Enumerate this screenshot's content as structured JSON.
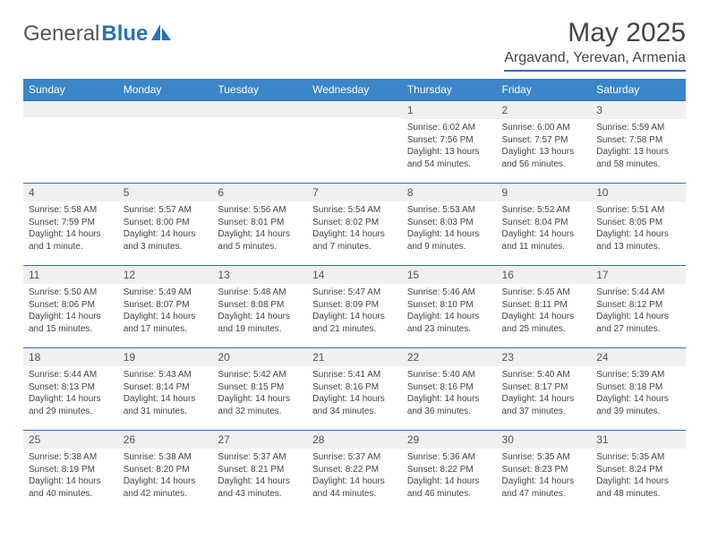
{
  "logo": {
    "text1": "General",
    "text2": "Blue"
  },
  "title": "May 2025",
  "location": "Argavand, Yerevan, Armenia",
  "colors": {
    "header_bg": "#3a86c8",
    "header_text": "#ffffff",
    "rule": "#2a72b5",
    "daynum_bg": "#eef0f2",
    "body_text": "#444444"
  },
  "weekdays": [
    "Sunday",
    "Monday",
    "Tuesday",
    "Wednesday",
    "Thursday",
    "Friday",
    "Saturday"
  ],
  "weeks": [
    [
      null,
      null,
      null,
      null,
      {
        "n": "1",
        "sr": "Sunrise: 6:02 AM",
        "ss": "Sunset: 7:56 PM",
        "dl": "Daylight: 13 hours and 54 minutes."
      },
      {
        "n": "2",
        "sr": "Sunrise: 6:00 AM",
        "ss": "Sunset: 7:57 PM",
        "dl": "Daylight: 13 hours and 56 minutes."
      },
      {
        "n": "3",
        "sr": "Sunrise: 5:59 AM",
        "ss": "Sunset: 7:58 PM",
        "dl": "Daylight: 13 hours and 58 minutes."
      }
    ],
    [
      {
        "n": "4",
        "sr": "Sunrise: 5:58 AM",
        "ss": "Sunset: 7:59 PM",
        "dl": "Daylight: 14 hours and 1 minute."
      },
      {
        "n": "5",
        "sr": "Sunrise: 5:57 AM",
        "ss": "Sunset: 8:00 PM",
        "dl": "Daylight: 14 hours and 3 minutes."
      },
      {
        "n": "6",
        "sr": "Sunrise: 5:56 AM",
        "ss": "Sunset: 8:01 PM",
        "dl": "Daylight: 14 hours and 5 minutes."
      },
      {
        "n": "7",
        "sr": "Sunrise: 5:54 AM",
        "ss": "Sunset: 8:02 PM",
        "dl": "Daylight: 14 hours and 7 minutes."
      },
      {
        "n": "8",
        "sr": "Sunrise: 5:53 AM",
        "ss": "Sunset: 8:03 PM",
        "dl": "Daylight: 14 hours and 9 minutes."
      },
      {
        "n": "9",
        "sr": "Sunrise: 5:52 AM",
        "ss": "Sunset: 8:04 PM",
        "dl": "Daylight: 14 hours and 11 minutes."
      },
      {
        "n": "10",
        "sr": "Sunrise: 5:51 AM",
        "ss": "Sunset: 8:05 PM",
        "dl": "Daylight: 14 hours and 13 minutes."
      }
    ],
    [
      {
        "n": "11",
        "sr": "Sunrise: 5:50 AM",
        "ss": "Sunset: 8:06 PM",
        "dl": "Daylight: 14 hours and 15 minutes."
      },
      {
        "n": "12",
        "sr": "Sunrise: 5:49 AM",
        "ss": "Sunset: 8:07 PM",
        "dl": "Daylight: 14 hours and 17 minutes."
      },
      {
        "n": "13",
        "sr": "Sunrise: 5:48 AM",
        "ss": "Sunset: 8:08 PM",
        "dl": "Daylight: 14 hours and 19 minutes."
      },
      {
        "n": "14",
        "sr": "Sunrise: 5:47 AM",
        "ss": "Sunset: 8:09 PM",
        "dl": "Daylight: 14 hours and 21 minutes."
      },
      {
        "n": "15",
        "sr": "Sunrise: 5:46 AM",
        "ss": "Sunset: 8:10 PM",
        "dl": "Daylight: 14 hours and 23 minutes."
      },
      {
        "n": "16",
        "sr": "Sunrise: 5:45 AM",
        "ss": "Sunset: 8:11 PM",
        "dl": "Daylight: 14 hours and 25 minutes."
      },
      {
        "n": "17",
        "sr": "Sunrise: 5:44 AM",
        "ss": "Sunset: 8:12 PM",
        "dl": "Daylight: 14 hours and 27 minutes."
      }
    ],
    [
      {
        "n": "18",
        "sr": "Sunrise: 5:44 AM",
        "ss": "Sunset: 8:13 PM",
        "dl": "Daylight: 14 hours and 29 minutes."
      },
      {
        "n": "19",
        "sr": "Sunrise: 5:43 AM",
        "ss": "Sunset: 8:14 PM",
        "dl": "Daylight: 14 hours and 31 minutes."
      },
      {
        "n": "20",
        "sr": "Sunrise: 5:42 AM",
        "ss": "Sunset: 8:15 PM",
        "dl": "Daylight: 14 hours and 32 minutes."
      },
      {
        "n": "21",
        "sr": "Sunrise: 5:41 AM",
        "ss": "Sunset: 8:16 PM",
        "dl": "Daylight: 14 hours and 34 minutes."
      },
      {
        "n": "22",
        "sr": "Sunrise: 5:40 AM",
        "ss": "Sunset: 8:16 PM",
        "dl": "Daylight: 14 hours and 36 minutes."
      },
      {
        "n": "23",
        "sr": "Sunrise: 5:40 AM",
        "ss": "Sunset: 8:17 PM",
        "dl": "Daylight: 14 hours and 37 minutes."
      },
      {
        "n": "24",
        "sr": "Sunrise: 5:39 AM",
        "ss": "Sunset: 8:18 PM",
        "dl": "Daylight: 14 hours and 39 minutes."
      }
    ],
    [
      {
        "n": "25",
        "sr": "Sunrise: 5:38 AM",
        "ss": "Sunset: 8:19 PM",
        "dl": "Daylight: 14 hours and 40 minutes."
      },
      {
        "n": "26",
        "sr": "Sunrise: 5:38 AM",
        "ss": "Sunset: 8:20 PM",
        "dl": "Daylight: 14 hours and 42 minutes."
      },
      {
        "n": "27",
        "sr": "Sunrise: 5:37 AM",
        "ss": "Sunset: 8:21 PM",
        "dl": "Daylight: 14 hours and 43 minutes."
      },
      {
        "n": "28",
        "sr": "Sunrise: 5:37 AM",
        "ss": "Sunset: 8:22 PM",
        "dl": "Daylight: 14 hours and 44 minutes."
      },
      {
        "n": "29",
        "sr": "Sunrise: 5:36 AM",
        "ss": "Sunset: 8:22 PM",
        "dl": "Daylight: 14 hours and 46 minutes."
      },
      {
        "n": "30",
        "sr": "Sunrise: 5:35 AM",
        "ss": "Sunset: 8:23 PM",
        "dl": "Daylight: 14 hours and 47 minutes."
      },
      {
        "n": "31",
        "sr": "Sunrise: 5:35 AM",
        "ss": "Sunset: 8:24 PM",
        "dl": "Daylight: 14 hours and 48 minutes."
      }
    ]
  ]
}
